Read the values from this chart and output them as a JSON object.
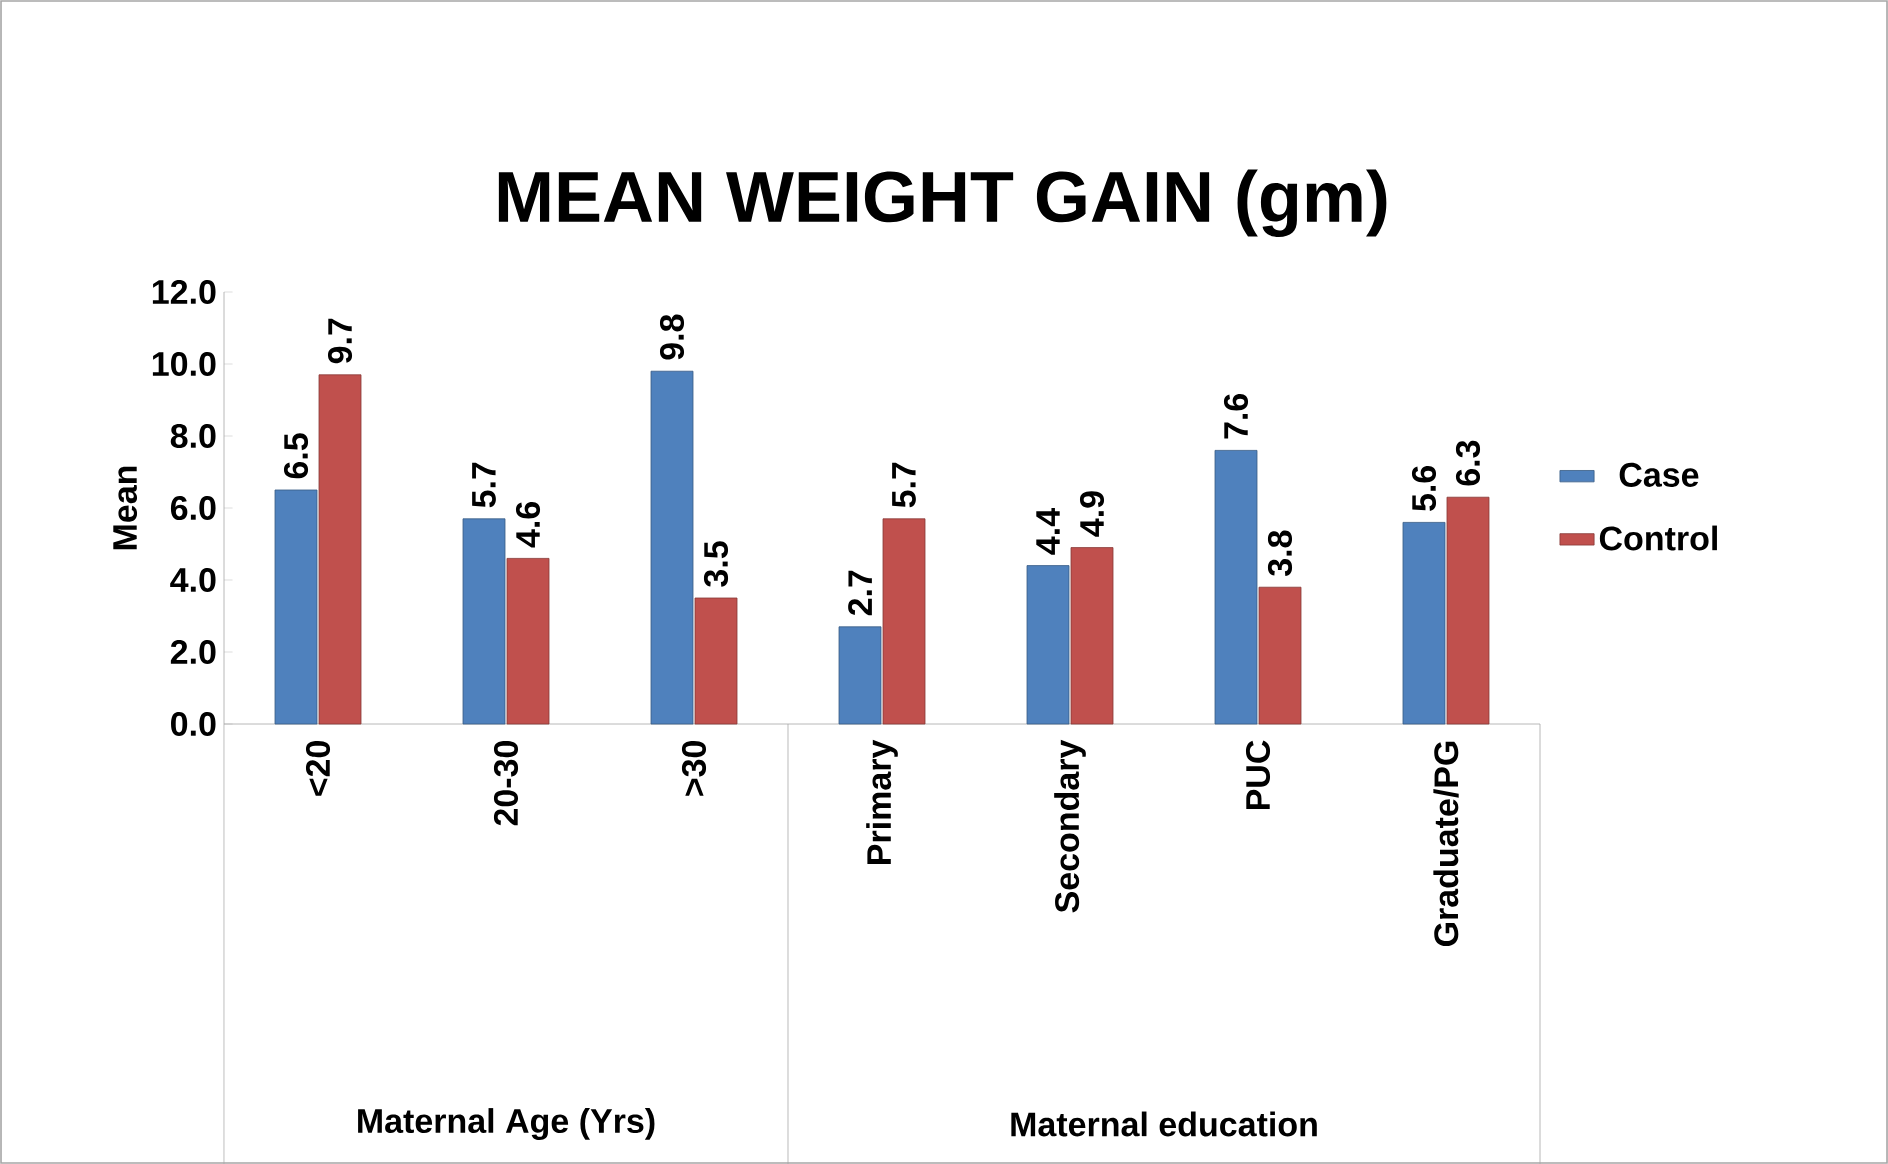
{
  "chart_data": {
    "type": "bar",
    "title": "MEAN WEIGHT GAIN (gm)",
    "ylabel": "Mean",
    "categories": [
      "<20",
      "20-30",
      ">30",
      "Primary",
      "Secondary",
      "PUC",
      "Graduate/PG"
    ],
    "series": [
      {
        "name": "Case",
        "color": "#4f81bd",
        "values": [
          6.5,
          5.7,
          9.8,
          2.7,
          4.4,
          7.6,
          5.6
        ]
      },
      {
        "name": "Control",
        "color": "#c0504d",
        "values": [
          9.7,
          4.6,
          3.5,
          5.7,
          4.9,
          3.8,
          6.3
        ]
      }
    ],
    "ylim": [
      0,
      12
    ],
    "yticks": [
      {
        "value": 0,
        "label": "0.0"
      },
      {
        "value": 2,
        "label": "2.0"
      },
      {
        "value": 4,
        "label": "4.0"
      },
      {
        "value": 6,
        "label": "6.0"
      },
      {
        "value": 8,
        "label": "8.0"
      },
      {
        "value": 10,
        "label": "10.0"
      },
      {
        "value": 12,
        "label": "12.0"
      }
    ],
    "data_labels": true,
    "legend": "right",
    "annotations": [
      "Maternal Age (Yrs)",
      "Maternal education"
    ]
  }
}
